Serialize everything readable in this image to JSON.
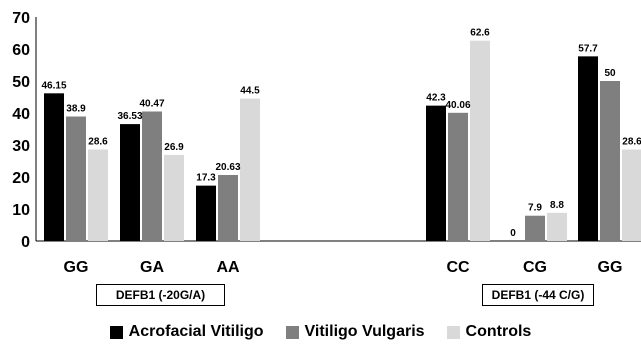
{
  "chart_data": {
    "type": "bar",
    "title": "",
    "xlabel": "",
    "ylabel": "",
    "ylim": [
      0,
      70
    ],
    "yticks": [
      0,
      10,
      20,
      30,
      40,
      50,
      60,
      70
    ],
    "grid": false,
    "legend_position": "bottom",
    "groups": [
      {
        "label": "DEFB1 (-20G/A)",
        "categories": [
          "GG",
          "GA",
          "AA"
        ]
      },
      {
        "label": "DEFB1 (-44 C/G)",
        "categories": [
          "CC",
          "CG",
          "GG"
        ]
      }
    ],
    "categories": [
      "GG",
      "GA",
      "AA",
      "CC",
      "CG",
      "GG"
    ],
    "series": [
      {
        "name": "Acrofacial Vitiligo",
        "color": "#000000",
        "values": [
          46.15,
          36.53,
          17.3,
          42.3,
          0,
          57.7
        ],
        "labels": [
          "46.15",
          "36.53",
          "17.3",
          "42.3",
          "0",
          "57.7"
        ]
      },
      {
        "name": "Vitiligo Vulgaris",
        "color": "#7f7f7f",
        "values": [
          38.9,
          40.47,
          20.63,
          40.06,
          7.9,
          50
        ],
        "labels": [
          "38.9",
          "40.47",
          "20.63",
          "40.06",
          "7.9",
          "50"
        ]
      },
      {
        "name": "Controls",
        "color": "#d9d9d9",
        "values": [
          28.6,
          26.9,
          44.5,
          62.6,
          8.8,
          28.6
        ],
        "labels": [
          "28.6",
          "26.9",
          "44.5",
          "62.6",
          "8.8",
          "28.6"
        ]
      }
    ]
  }
}
